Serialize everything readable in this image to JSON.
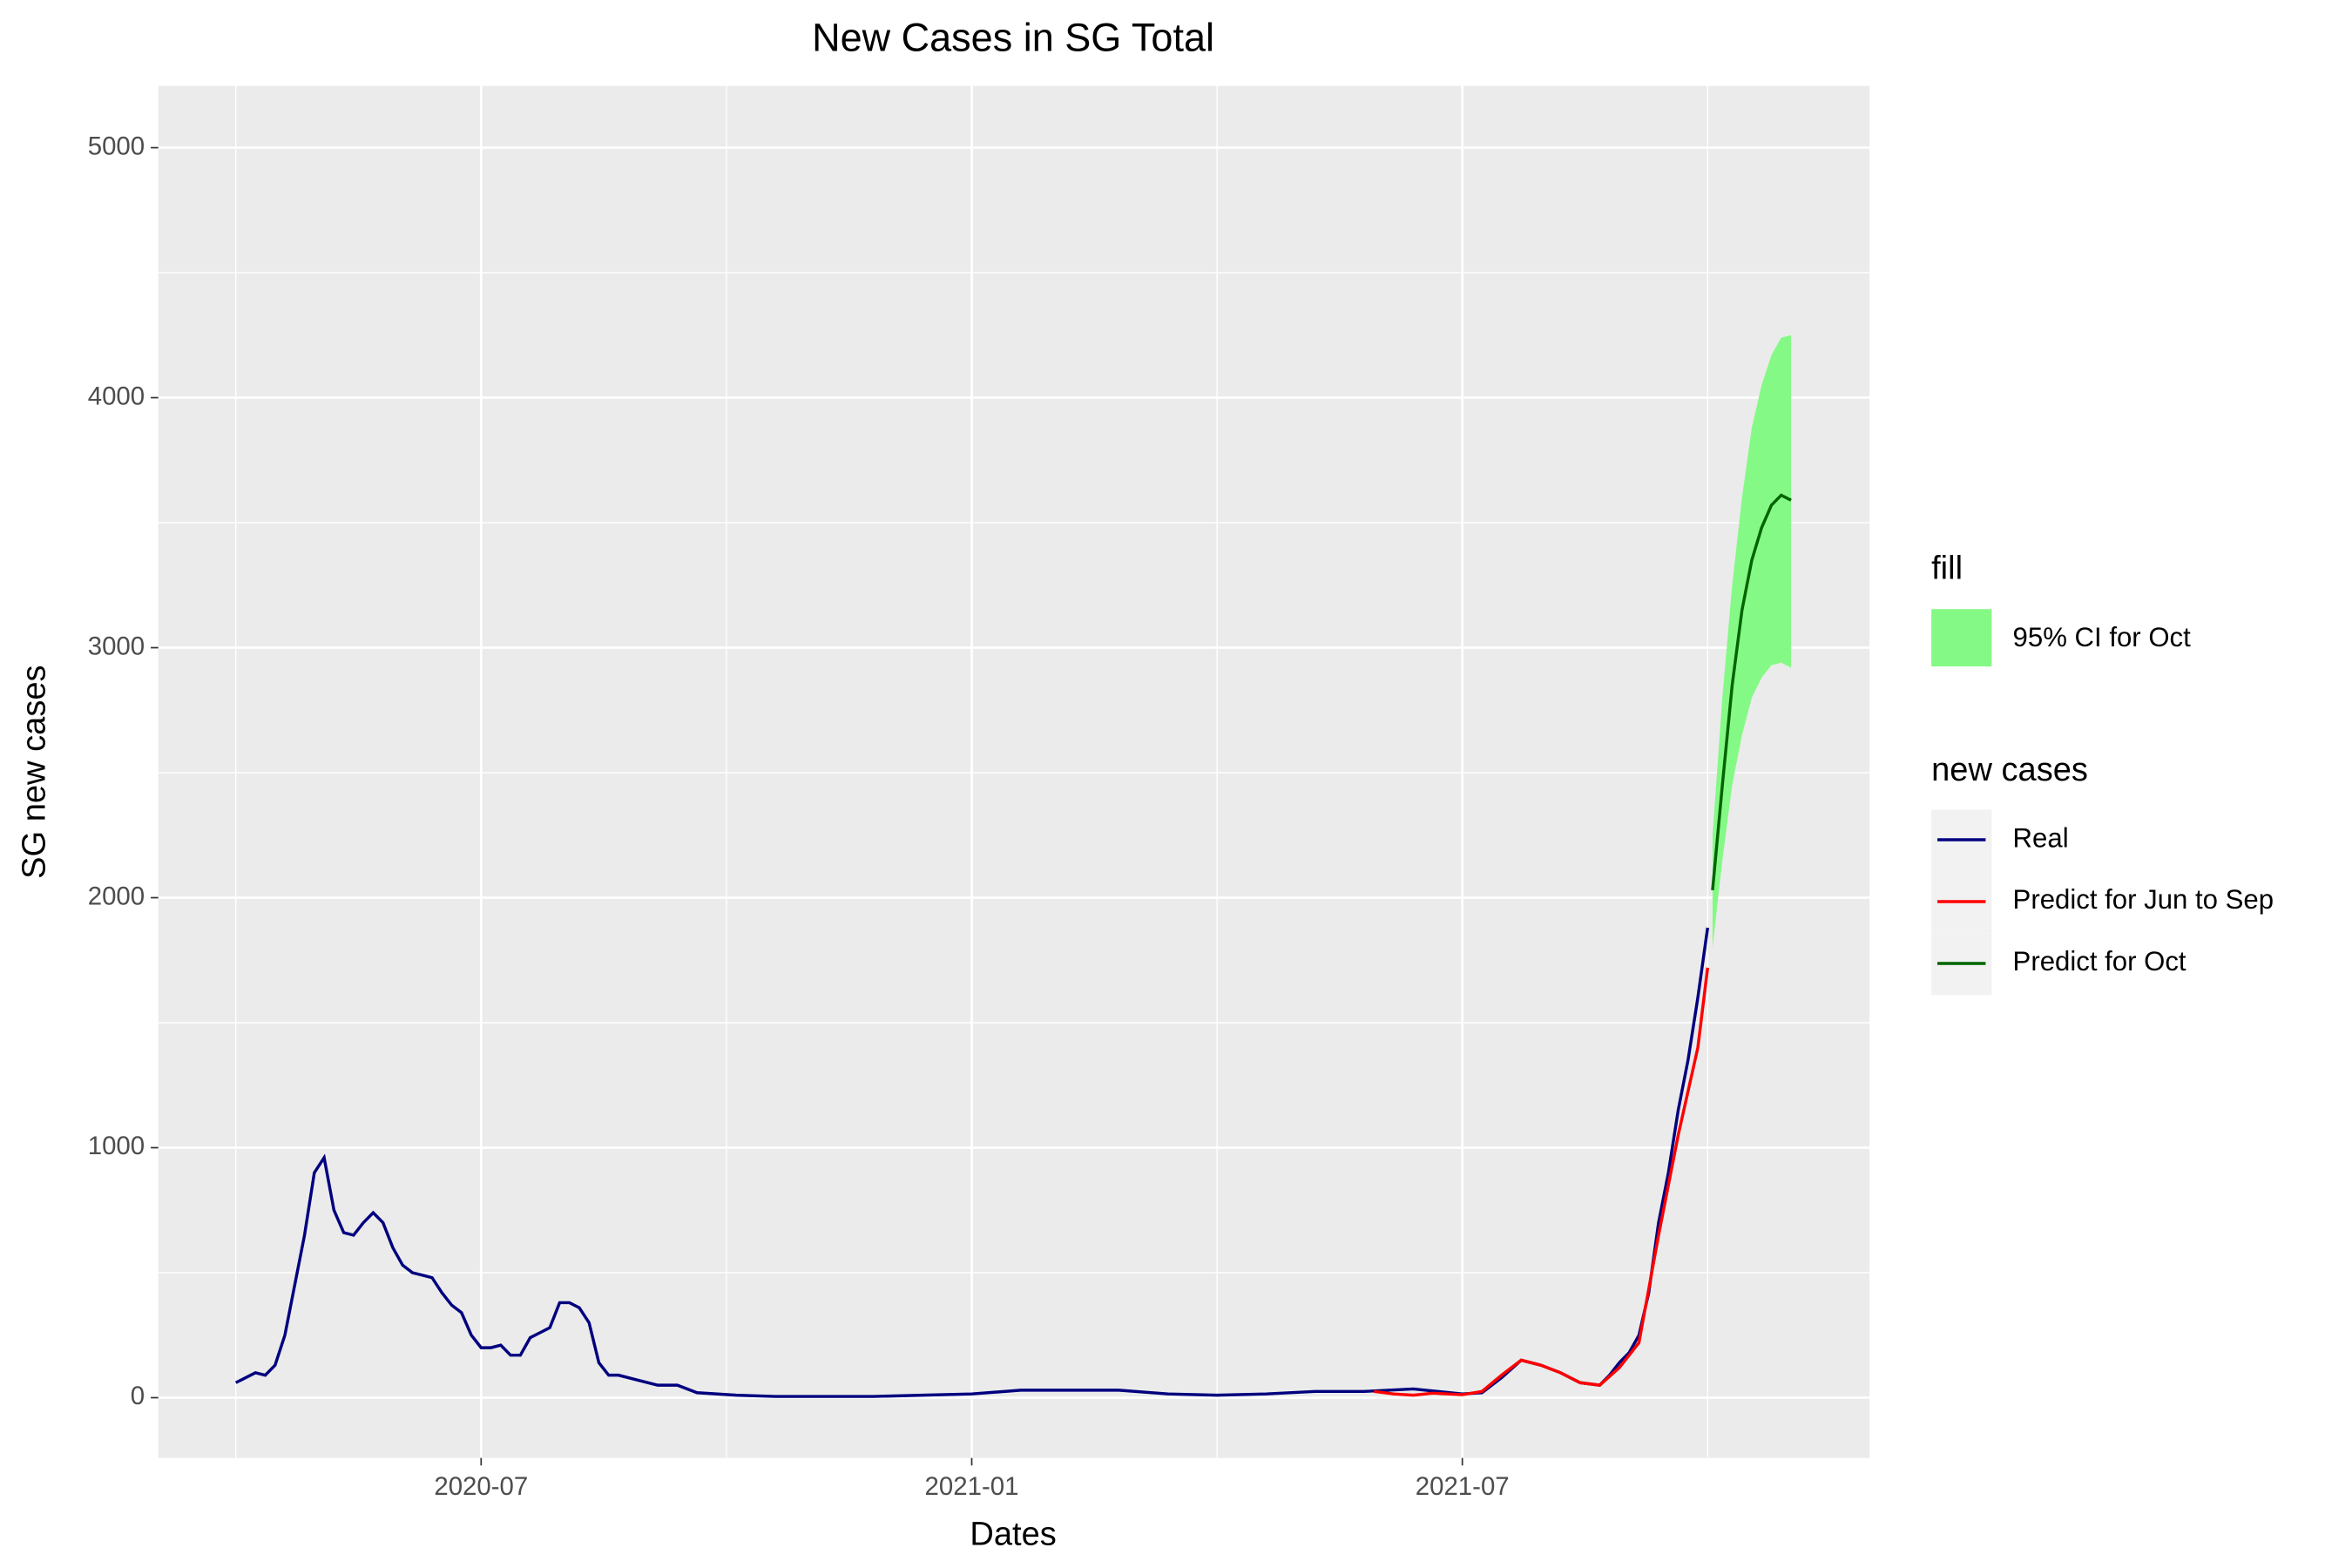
{
  "chart_data": {
    "type": "line",
    "title": "New Cases in SG Total",
    "xlabel": "Dates",
    "ylabel": "SG new cases",
    "xlim": [
      2020.171,
      2021.915
    ],
    "xticks": [
      {
        "value": 2020.5,
        "label": "2020-07"
      },
      {
        "value": 2021.0,
        "label": "2021-01"
      },
      {
        "value": 2021.5,
        "label": "2021-07"
      }
    ],
    "minor_xticks": [
      2020.25,
      2020.75,
      2021.25,
      2021.75
    ],
    "ylim": [
      -241,
      5247
    ],
    "yticks": [
      0,
      1000,
      2000,
      3000,
      4000,
      5000
    ],
    "minor_yticks": [
      500,
      1500,
      2500,
      3500,
      4500
    ],
    "grid": true,
    "legend_position": "right",
    "fill_legend_title": "fill",
    "color_legend_title": "new cases",
    "bands": [
      {
        "name": "95% CI for Oct",
        "color": "#85f985",
        "x": [
          2021.755,
          2021.765,
          2021.775,
          2021.785,
          2021.795,
          2021.805,
          2021.815,
          2021.825,
          2021.835
        ],
        "lower": [
          1800,
          2150,
          2450,
          2650,
          2800,
          2880,
          2930,
          2940,
          2920
        ],
        "upper": [
          2250,
          2800,
          3250,
          3600,
          3880,
          4050,
          4170,
          4240,
          4250
        ]
      }
    ],
    "series": [
      {
        "name": "Real",
        "color": "#00007f",
        "x": [
          2020.25,
          2020.26,
          2020.27,
          2020.28,
          2020.29,
          2020.3,
          2020.31,
          2020.32,
          2020.33,
          2020.34,
          2020.35,
          2020.36,
          2020.37,
          2020.38,
          2020.39,
          2020.4,
          2020.41,
          2020.42,
          2020.43,
          2020.44,
          2020.45,
          2020.46,
          2020.47,
          2020.48,
          2020.49,
          2020.5,
          2020.51,
          2020.52,
          2020.53,
          2020.54,
          2020.55,
          2020.56,
          2020.57,
          2020.58,
          2020.59,
          2020.6,
          2020.61,
          2020.62,
          2020.63,
          2020.64,
          2020.66,
          2020.68,
          2020.7,
          2020.72,
          2020.76,
          2020.8,
          2020.85,
          2020.9,
          2020.95,
          2021.0,
          2021.05,
          2021.1,
          2021.15,
          2021.2,
          2021.25,
          2021.3,
          2021.35,
          2021.4,
          2021.45,
          2021.5,
          2021.52,
          2021.54,
          2021.56,
          2021.58,
          2021.6,
          2021.62,
          2021.64,
          2021.65,
          2021.66,
          2021.67,
          2021.68,
          2021.69,
          2021.7,
          2021.71,
          2021.72,
          2021.73,
          2021.74,
          2021.75
        ],
        "values": [
          60,
          80,
          100,
          90,
          130,
          250,
          450,
          650,
          900,
          960,
          750,
          660,
          650,
          700,
          740,
          700,
          600,
          530,
          500,
          490,
          480,
          420,
          370,
          340,
          250,
          200,
          200,
          210,
          170,
          170,
          240,
          260,
          280,
          380,
          380,
          360,
          300,
          140,
          90,
          90,
          70,
          50,
          50,
          20,
          10,
          5,
          5,
          5,
          10,
          15,
          30,
          30,
          30,
          15,
          10,
          15,
          25,
          25,
          35,
          15,
          20,
          80,
          150,
          130,
          100,
          60,
          50,
          90,
          140,
          180,
          250,
          420,
          700,
          900,
          1150,
          1350,
          1600,
          1880
        ]
      },
      {
        "name": "Predict for Jun to Sep",
        "color": "#ff0000",
        "x": [
          2021.41,
          2021.43,
          2021.45,
          2021.47,
          2021.5,
          2021.52,
          2021.54,
          2021.56,
          2021.58,
          2021.6,
          2021.62,
          2021.64,
          2021.66,
          2021.68,
          2021.7,
          2021.72,
          2021.74,
          2021.75
        ],
        "values": [
          25,
          15,
          10,
          18,
          12,
          25,
          90,
          150,
          130,
          100,
          60,
          50,
          120,
          220,
          650,
          1050,
          1400,
          1720
        ]
      },
      {
        "name": "Predict for Oct",
        "color": "#006400",
        "x": [
          2021.755,
          2021.765,
          2021.775,
          2021.785,
          2021.795,
          2021.805,
          2021.815,
          2021.825,
          2021.835
        ],
        "values": [
          2030,
          2450,
          2850,
          3150,
          3350,
          3480,
          3570,
          3610,
          3590
        ]
      }
    ]
  }
}
